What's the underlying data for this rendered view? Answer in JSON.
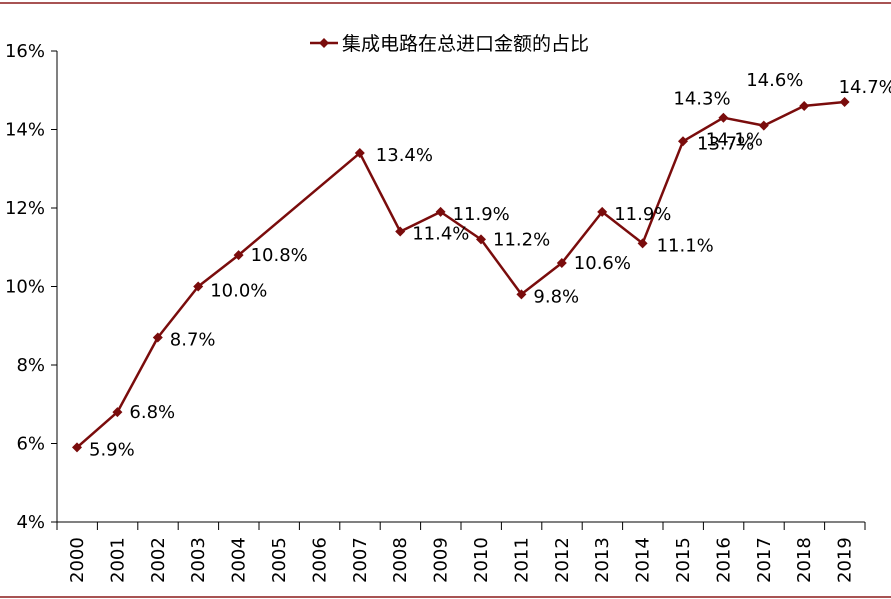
{
  "chart_data": {
    "type": "line",
    "title": "",
    "xlabel": "",
    "ylabel": "",
    "categories": [
      "2000",
      "2001",
      "2002",
      "2003",
      "2004",
      "2005",
      "2006",
      "2007",
      "2008",
      "2009",
      "2010",
      "2011",
      "2012",
      "2013",
      "2014",
      "2015",
      "2016",
      "2017",
      "2018",
      "2019"
    ],
    "series": [
      {
        "name": "集成电路在总进口金额的占比",
        "values": [
          5.9,
          6.8,
          8.7,
          10.0,
          10.8,
          null,
          null,
          13.4,
          11.4,
          11.9,
          11.2,
          9.8,
          10.6,
          11.9,
          11.1,
          13.7,
          14.3,
          14.1,
          14.6,
          14.7
        ],
        "labels": [
          "5.9%",
          "6.8%",
          "8.7%",
          "10.0%",
          "10.8%",
          "",
          "",
          "13.4%",
          "11.4%",
          "11.9%",
          "11.2%",
          "9.8%",
          "10.6%",
          "11.9%",
          "11.1%",
          "13.7%",
          "14.3%",
          "14.1%",
          "14.6%",
          "14.7%"
        ]
      }
    ],
    "ylim": [
      4,
      16
    ],
    "y_ticks": [
      4,
      6,
      8,
      10,
      12,
      14,
      16
    ],
    "y_tick_labels": [
      "4%",
      "6%",
      "8%",
      "10%",
      "12%",
      "14%",
      "16%"
    ],
    "grid": false,
    "legend_position": "top",
    "line_color": "#7a0c0c",
    "rule_color": "#8b1a1a"
  }
}
